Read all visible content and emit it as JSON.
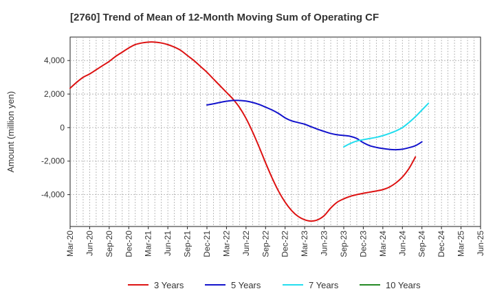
{
  "chart_data": {
    "type": "line",
    "title": "[2760]  Trend of Mean of 12-Month Moving Sum of Operating CF",
    "xlabel": "",
    "ylabel": "Amount (million yen)",
    "ylim": [
      -5900,
      5400
    ],
    "y_ticks": [
      4000,
      2000,
      0,
      -2000,
      -4000
    ],
    "y_tick_labels": [
      "4,000",
      "2,000",
      "0",
      "-2,000",
      "-4,000"
    ],
    "x_start": "Mar-20",
    "x_tick_labels": [
      "Mar-20",
      "Jun-20",
      "Sep-20",
      "Dec-20",
      "Mar-21",
      "Jun-21",
      "Sep-21",
      "Dec-21",
      "Mar-22",
      "Jun-22",
      "Sep-22",
      "Dec-22",
      "Mar-23",
      "Jun-23",
      "Sep-23",
      "Dec-23",
      "Mar-24",
      "Jun-24",
      "Sep-24",
      "Dec-24",
      "Mar-25",
      "Jun-25"
    ],
    "grid": true,
    "legend_position": "bottom",
    "series": [
      {
        "name": "3 Years",
        "color": "#dd1111",
        "points": [
          [
            0,
            2350
          ],
          [
            1,
            2700
          ],
          [
            2,
            3000
          ],
          [
            3,
            3200
          ],
          [
            4,
            3450
          ],
          [
            5,
            3700
          ],
          [
            6,
            3950
          ],
          [
            7,
            4250
          ],
          [
            8,
            4500
          ],
          [
            9,
            4750
          ],
          [
            10,
            4950
          ],
          [
            11,
            5050
          ],
          [
            12,
            5100
          ],
          [
            13,
            5100
          ],
          [
            14,
            5050
          ],
          [
            15,
            4950
          ],
          [
            16,
            4800
          ],
          [
            17,
            4600
          ],
          [
            18,
            4300
          ],
          [
            19,
            4000
          ],
          [
            20,
            3650
          ],
          [
            21,
            3300
          ],
          [
            22,
            2900
          ],
          [
            23,
            2500
          ],
          [
            24,
            2100
          ],
          [
            25,
            1700
          ],
          [
            26,
            1200
          ],
          [
            27,
            550
          ],
          [
            28,
            -250
          ],
          [
            29,
            -1150
          ],
          [
            30,
            -2100
          ],
          [
            31,
            -3000
          ],
          [
            32,
            -3800
          ],
          [
            33,
            -4450
          ],
          [
            34,
            -4950
          ],
          [
            35,
            -5300
          ],
          [
            36,
            -5500
          ],
          [
            37,
            -5580
          ],
          [
            38,
            -5500
          ],
          [
            39,
            -5250
          ],
          [
            40,
            -4800
          ],
          [
            41,
            -4450
          ],
          [
            42,
            -4250
          ],
          [
            43,
            -4100
          ],
          [
            44,
            -4000
          ],
          [
            45,
            -3920
          ],
          [
            46,
            -3850
          ],
          [
            47,
            -3780
          ],
          [
            48,
            -3700
          ],
          [
            49,
            -3550
          ],
          [
            50,
            -3300
          ],
          [
            51,
            -2950
          ],
          [
            52,
            -2450
          ],
          [
            53,
            -1750
          ]
        ]
      },
      {
        "name": "5 Years",
        "color": "#1111cc",
        "points": [
          [
            21,
            1350
          ],
          [
            22,
            1420
          ],
          [
            23,
            1500
          ],
          [
            24,
            1570
          ],
          [
            25,
            1620
          ],
          [
            26,
            1620
          ],
          [
            27,
            1580
          ],
          [
            28,
            1500
          ],
          [
            29,
            1380
          ],
          [
            30,
            1220
          ],
          [
            31,
            1050
          ],
          [
            32,
            840
          ],
          [
            33,
            580
          ],
          [
            34,
            400
          ],
          [
            35,
            300
          ],
          [
            36,
            200
          ],
          [
            37,
            50
          ],
          [
            38,
            -100
          ],
          [
            39,
            -230
          ],
          [
            40,
            -350
          ],
          [
            41,
            -430
          ],
          [
            42,
            -470
          ],
          [
            43,
            -520
          ],
          [
            44,
            -650
          ],
          [
            45,
            -900
          ],
          [
            46,
            -1080
          ],
          [
            47,
            -1180
          ],
          [
            48,
            -1250
          ],
          [
            49,
            -1300
          ],
          [
            50,
            -1320
          ],
          [
            51,
            -1290
          ],
          [
            52,
            -1200
          ],
          [
            53,
            -1080
          ],
          [
            54,
            -850
          ]
        ]
      },
      {
        "name": "7 Years",
        "color": "#22ddee",
        "points": [
          [
            42,
            -1150
          ],
          [
            43,
            -950
          ],
          [
            44,
            -800
          ],
          [
            45,
            -720
          ],
          [
            46,
            -650
          ],
          [
            47,
            -580
          ],
          [
            48,
            -480
          ],
          [
            49,
            -350
          ],
          [
            50,
            -200
          ],
          [
            51,
            0
          ],
          [
            52,
            300
          ],
          [
            53,
            650
          ],
          [
            54,
            1050
          ],
          [
            55,
            1450
          ]
        ]
      },
      {
        "name": "10 Years",
        "color": "#228822",
        "points": []
      }
    ]
  }
}
